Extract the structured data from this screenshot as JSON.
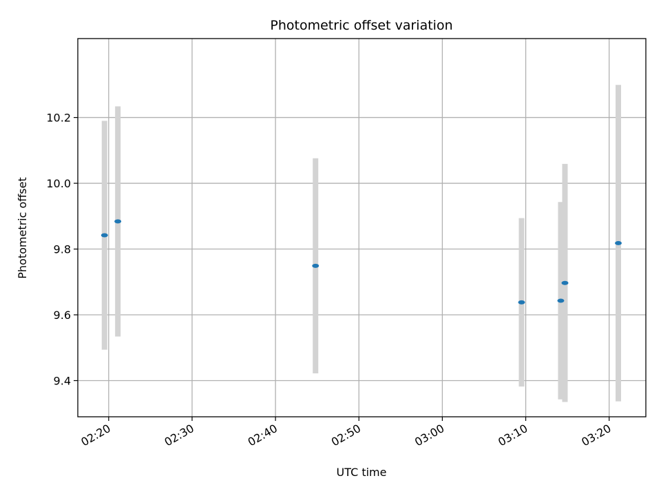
{
  "chart_data": {
    "type": "scatter",
    "title": "Photometric offset variation",
    "xlabel": "UTC time",
    "ylabel": "Photometric offset",
    "x_ticks": [
      "02:20",
      "02:30",
      "02:40",
      "02:50",
      "03:00",
      "03:10",
      "03:20"
    ],
    "x_tick_minutes": [
      140,
      150,
      160,
      170,
      180,
      190,
      200
    ],
    "xlim_minutes": [
      136.3,
      204.4
    ],
    "y_ticks": [
      "9.4",
      "9.6",
      "9.8",
      "10.0",
      "10.2"
    ],
    "y_tick_values": [
      9.4,
      9.6,
      9.8,
      10.0,
      10.2
    ],
    "ylim": [
      9.29,
      10.44
    ],
    "grid": true,
    "colors": {
      "point": "#1f77b4",
      "errorbar": "#d3d3d3",
      "grid": "#b0b0b0"
    },
    "points": [
      {
        "x_minutes": 139.5,
        "y": 9.842,
        "err": 0.348
      },
      {
        "x_minutes": 141.1,
        "y": 9.884,
        "err": 0.35
      },
      {
        "x_minutes": 164.8,
        "y": 9.749,
        "err": 0.327
      },
      {
        "x_minutes": 189.5,
        "y": 9.638,
        "err": 0.256
      },
      {
        "x_minutes": 194.2,
        "y": 9.643,
        "err": 0.3
      },
      {
        "x_minutes": 194.7,
        "y": 9.697,
        "err": 0.362
      },
      {
        "x_minutes": 201.1,
        "y": 9.818,
        "err": 0.481
      }
    ]
  }
}
